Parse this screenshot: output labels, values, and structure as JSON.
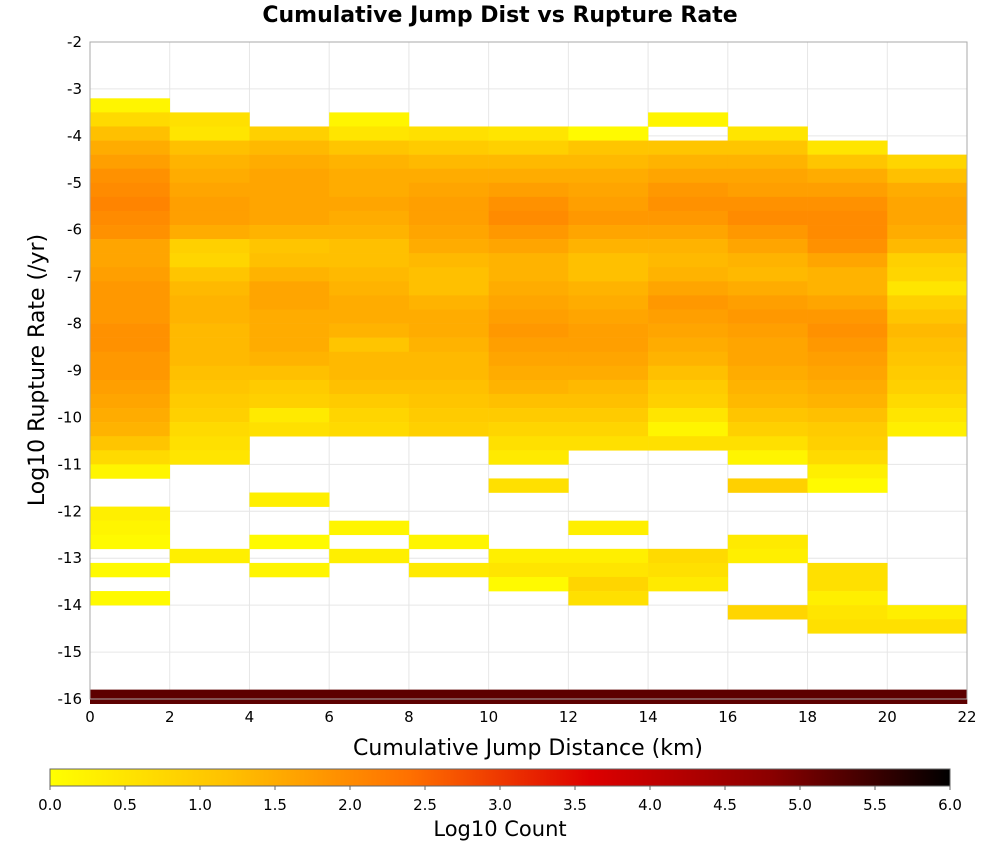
{
  "chart_data": {
    "type": "heatmap",
    "title": "Cumulative Jump Dist vs Rupture Rate",
    "xlabel": "Cumulative Jump Distance (km)",
    "ylabel": "Log10 Rupture Rate (/yr)",
    "colorbar_label": "Log10 Count",
    "xlim": [
      0,
      22
    ],
    "ylim": [
      -16,
      -2
    ],
    "x_ticks": [
      "0",
      "2",
      "4",
      "6",
      "8",
      "10",
      "12",
      "14",
      "16",
      "18",
      "20",
      "22"
    ],
    "y_ticks": [
      "-2",
      "-3",
      "-4",
      "-5",
      "-6",
      "-7",
      "-8",
      "-9",
      "-10",
      "-11",
      "-12",
      "-13",
      "-14",
      "-15",
      "-16"
    ],
    "colorbar_ticks": [
      "0.0",
      "0.5",
      "1.0",
      "1.5",
      "2.0",
      "2.5",
      "3.0",
      "3.5",
      "4.0",
      "4.5",
      "5.0",
      "5.5",
      "6.0"
    ],
    "colorbar_range": [
      0,
      6
    ],
    "colormap": [
      "#ffff00",
      "#ffc000",
      "#ff7000",
      "#dd0000",
      "#8b0000",
      "#000000"
    ],
    "grid": true,
    "x_bin_width": 2,
    "y_bin_height": 0.3,
    "columns": [
      {
        "x0": 0,
        "y_top": -3.2,
        "values": [
          0.2,
          0.7,
          1.2,
          1.5,
          1.7,
          1.9,
          2.0,
          2.1,
          2.0,
          1.9,
          1.6,
          1.6,
          1.7,
          1.8,
          1.8,
          1.8,
          1.9,
          1.9,
          1.8,
          1.8,
          1.7,
          1.6,
          1.5,
          1.4,
          1.1,
          0.7,
          0.2,
          null,
          null,
          0.3,
          0.2,
          0.1,
          null,
          0.1,
          null,
          0.1,
          null
        ]
      },
      {
        "x0": 2,
        "y_top": -3.5,
        "values": [
          0.6,
          0.5,
          1.2,
          1.4,
          1.5,
          1.6,
          1.7,
          1.7,
          1.5,
          0.9,
          0.8,
          1.1,
          1.3,
          1.4,
          1.4,
          1.3,
          1.3,
          1.3,
          1.2,
          1.1,
          1.0,
          0.9,
          0.7,
          0.6,
          0.5,
          null,
          null,
          null,
          null,
          null,
          null,
          0.3
        ]
      },
      {
        "x0": 4,
        "y_top": -3.8,
        "values": [
          0.9,
          1.3,
          1.5,
          1.6,
          1.6,
          1.6,
          1.6,
          1.4,
          1.1,
          1.2,
          1.4,
          1.6,
          1.6,
          1.5,
          1.5,
          1.5,
          1.4,
          1.2,
          1.0,
          0.9,
          0.4,
          0.6,
          null,
          null,
          null,
          null,
          0.3,
          null,
          null,
          0.1,
          null,
          0.2
        ]
      },
      {
        "x0": 6,
        "y_top": -3.5,
        "values": [
          0.2,
          0.5,
          1.1,
          1.4,
          1.5,
          1.5,
          1.6,
          1.5,
          1.4,
          1.2,
          1.2,
          1.3,
          1.4,
          1.5,
          1.5,
          1.4,
          1.1,
          1.3,
          1.3,
          1.2,
          1.0,
          0.8,
          0.7,
          null,
          null,
          null,
          null,
          null,
          null,
          0.2,
          null,
          0.3
        ]
      },
      {
        "x0": 8,
        "y_top": -3.8,
        "values": [
          0.6,
          1.0,
          1.3,
          1.5,
          1.6,
          1.7,
          1.7,
          1.6,
          1.5,
          1.3,
          1.2,
          1.2,
          1.4,
          1.5,
          1.5,
          1.4,
          1.3,
          1.3,
          1.2,
          1.1,
          1.0,
          0.9,
          null,
          null,
          null,
          null,
          null,
          null,
          null,
          0.2,
          null,
          0.4
        ]
      },
      {
        "x0": 10,
        "y_top": -3.8,
        "values": [
          0.5,
          0.9,
          1.3,
          1.5,
          1.7,
          1.9,
          2.0,
          1.8,
          1.6,
          1.4,
          1.4,
          1.5,
          1.6,
          1.7,
          1.8,
          1.7,
          1.6,
          1.5,
          1.4,
          1.2,
          1.0,
          0.8,
          0.6,
          0.4,
          null,
          0.6,
          null,
          null,
          null,
          null,
          0.3,
          0.5,
          0.1
        ]
      },
      {
        "x0": 12,
        "y_top": -3.8,
        "values": [
          0.1,
          1.1,
          1.3,
          1.5,
          1.6,
          1.7,
          1.8,
          1.6,
          1.4,
          1.2,
          1.2,
          1.4,
          1.5,
          1.6,
          1.7,
          1.7,
          1.6,
          1.5,
          1.3,
          1.2,
          1.0,
          0.8,
          0.6,
          null,
          null,
          null,
          null,
          null,
          0.3,
          null,
          0.3,
          0.5,
          0.8,
          0.6
        ]
      },
      {
        "x0": 14,
        "y_top": -3.5,
        "values": [
          0.2,
          null,
          1.1,
          1.4,
          1.6,
          1.8,
          1.9,
          1.8,
          1.6,
          1.4,
          1.3,
          1.4,
          1.6,
          1.8,
          1.7,
          1.6,
          1.5,
          1.4,
          1.2,
          1.0,
          0.9,
          0.5,
          0.2,
          0.6,
          null,
          null,
          null,
          null,
          null,
          null,
          null,
          0.7,
          0.6,
          0.4
        ]
      },
      {
        "x0": 16,
        "y_top": -3.8,
        "values": [
          0.5,
          1.1,
          1.4,
          1.6,
          1.7,
          1.9,
          2.0,
          1.8,
          1.6,
          1.4,
          1.3,
          1.5,
          1.7,
          1.8,
          1.7,
          1.6,
          1.6,
          1.5,
          1.4,
          1.3,
          1.1,
          0.9,
          0.6,
          0.2,
          null,
          0.9,
          null,
          null,
          null,
          0.4,
          0.3,
          null,
          null,
          null,
          0.8
        ]
      },
      {
        "x0": 18,
        "y_top": -4.1,
        "values": [
          0.5,
          1.1,
          1.5,
          1.7,
          1.9,
          2.0,
          2.0,
          1.9,
          1.6,
          1.4,
          1.4,
          1.6,
          1.8,
          1.9,
          1.8,
          1.7,
          1.6,
          1.5,
          1.4,
          1.2,
          1.0,
          0.9,
          0.7,
          0.3,
          0.1,
          null,
          null,
          null,
          null,
          null,
          0.6,
          0.6,
          0.3,
          0.5,
          0.6
        ]
      },
      {
        "x0": 20,
        "y_top": -4.4,
        "values": [
          0.8,
          1.2,
          1.5,
          1.6,
          1.6,
          1.5,
          1.3,
          0.9,
          0.8,
          0.5,
          0.9,
          1.1,
          1.3,
          1.2,
          1.1,
          1.0,
          0.9,
          0.7,
          0.5,
          0.3,
          null,
          null,
          null,
          null,
          null,
          null,
          null,
          null,
          null,
          null,
          null,
          null,
          0.3,
          0.6
        ]
      },
      {
        "x0": 0,
        "y_top": -15.8,
        "span_x": 22,
        "values": [
          5.2
        ]
      }
    ]
  }
}
